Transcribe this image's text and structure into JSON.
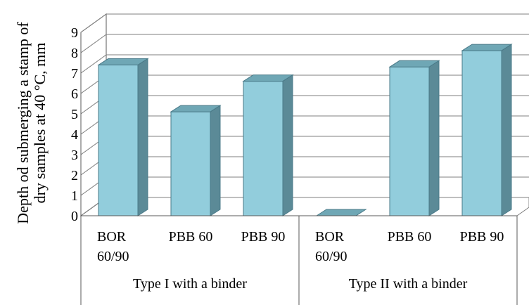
{
  "chart_data": {
    "type": "bar",
    "title": "",
    "xlabel": "",
    "ylabel": "Depth od submerging a stamp of dry samples at 40 °C, mm",
    "ylabel_lines": [
      "Depth od submerging a stamp of",
      "dry samples at 40 °C, mm"
    ],
    "ylim": [
      0,
      9
    ],
    "yticks": [
      "0",
      "1",
      "2",
      "3",
      "4",
      "5",
      "6",
      "7",
      "8",
      "9"
    ],
    "grid": true,
    "legend": "none",
    "groups": [
      {
        "label": "Type I with a binder",
        "categories": [
          {
            "lines": [
              "BOR",
              "60/90"
            ],
            "value": 7.4
          },
          {
            "lines": [
              "PBB 60"
            ],
            "value": 5.1
          },
          {
            "lines": [
              "PBB 90"
            ],
            "value": 6.6
          }
        ]
      },
      {
        "label": "Type II with a binder",
        "categories": [
          {
            "lines": [
              "BOR",
              "60/90"
            ],
            "value": 0
          },
          {
            "lines": [
              "PBB 60"
            ],
            "value": 7.3
          },
          {
            "lines": [
              "PBB 90"
            ],
            "value": 8.1
          }
        ]
      }
    ],
    "colors": {
      "bar_front": "#92CDDC",
      "bar_side": "#5B8A97",
      "bar_top": "#6FA7B5",
      "bar_edge": "#4A7A88",
      "grid": "#7F7F7F",
      "axis": "#595959"
    }
  }
}
